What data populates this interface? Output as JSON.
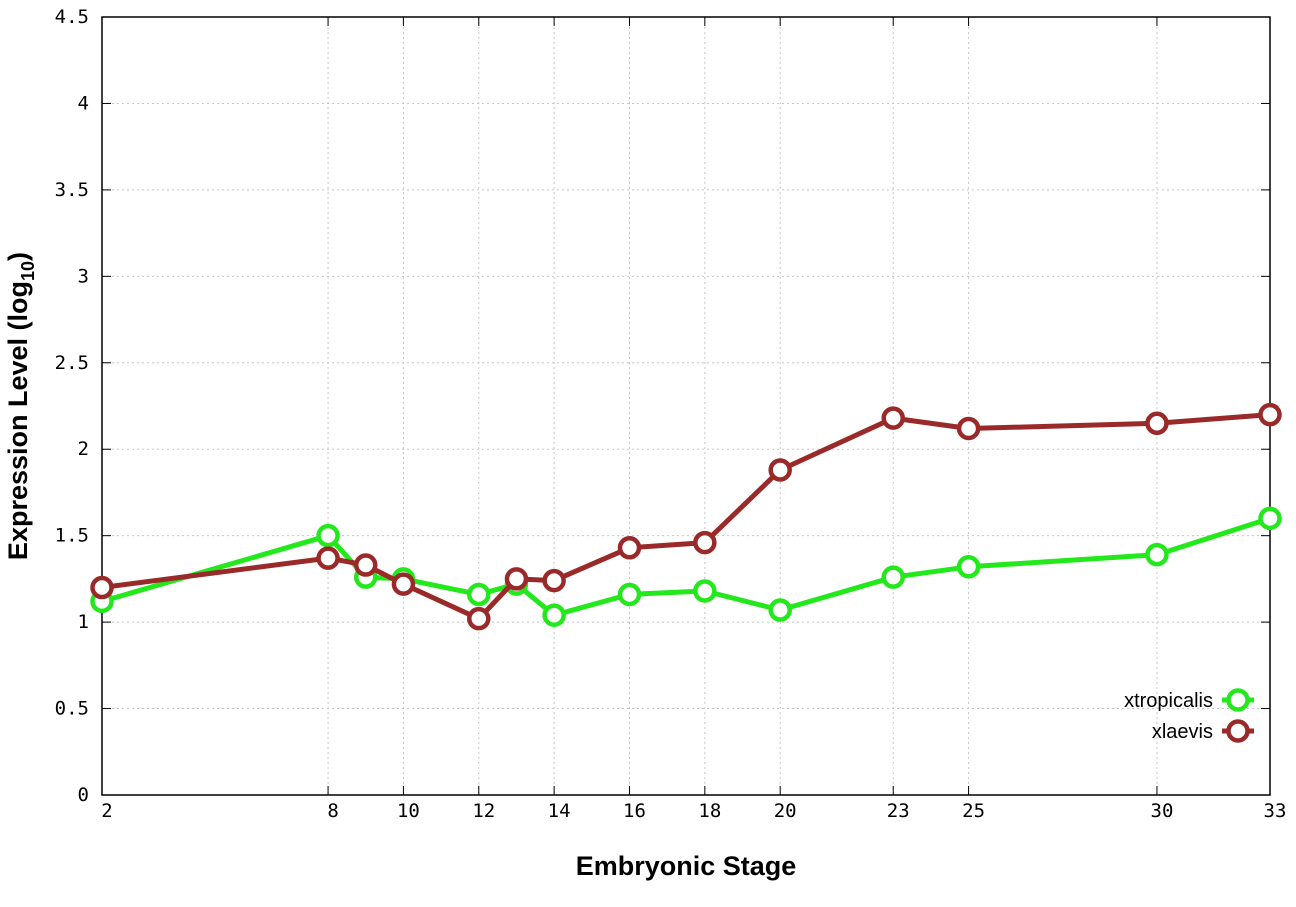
{
  "chart_data": {
    "type": "line",
    "title": "",
    "xlabel": "Embryonic Stage",
    "ylabel": {
      "prefix": "Expression Level (log",
      "subscript": "10",
      "suffix": ")"
    },
    "x_ticks": [
      2,
      8,
      10,
      12,
      14,
      16,
      18,
      20,
      23,
      25,
      30,
      33
    ],
    "y_ticks": [
      "0",
      "0.5",
      "1",
      "1.5",
      "2",
      "2.5",
      "3",
      "3.5",
      "4",
      "4.5"
    ],
    "xlim": [
      2,
      33
    ],
    "ylim": [
      0,
      4.5
    ],
    "grid": true,
    "legend_position": "bottom-right",
    "series": [
      {
        "name": "xtropicalis",
        "color": "#22e81c",
        "x": [
          2,
          8,
          9,
          10,
          12,
          13,
          14,
          16,
          18,
          20,
          23,
          25,
          30,
          33
        ],
        "y": [
          1.12,
          1.5,
          1.26,
          1.25,
          1.16,
          1.22,
          1.04,
          1.16,
          1.18,
          1.07,
          1.26,
          1.32,
          1.39,
          1.6
        ]
      },
      {
        "name": "xlaevis",
        "color": "#9a2a2a",
        "x": [
          2,
          8,
          9,
          10,
          12,
          13,
          14,
          16,
          18,
          20,
          23,
          25,
          30,
          33
        ],
        "y": [
          1.2,
          1.37,
          1.33,
          1.22,
          1.02,
          1.25,
          1.24,
          1.43,
          1.46,
          1.88,
          2.18,
          2.12,
          2.15,
          2.2
        ]
      }
    ]
  }
}
